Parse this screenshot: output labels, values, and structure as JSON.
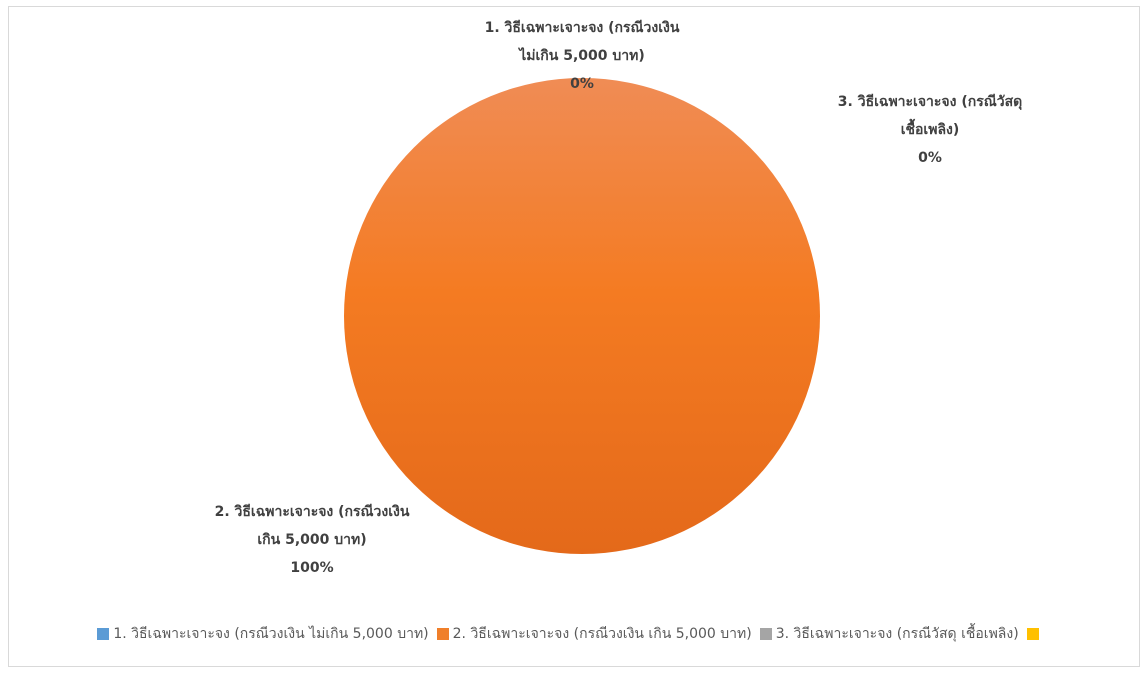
{
  "chart_data": {
    "type": "pie",
    "title": "",
    "slices": [
      {
        "name": "1. วิธีเฉพาะเจาะจง (กรณีวงเงิน ไม่เกิน 5,000 บาท)",
        "label_lines": [
          "1. วิธีเฉพาะเจาะจง (กรณีวงเงิน",
          "ไม่เกิน 5,000 บาท)"
        ],
        "value": 0,
        "percent_label": "0%",
        "color": "#5b9bd5"
      },
      {
        "name": "2. วิธีเฉพาะเจาะจง (กรณีวงเงิน เกิน 5,000 บาท)",
        "label_lines": [
          "2. วิธีเฉพาะเจาะจง (กรณีวงเงิน",
          "เกิน 5,000 บาท)"
        ],
        "value": 100,
        "percent_label": "100%",
        "color": "#f07f2a"
      },
      {
        "name": "3. วิธีเฉพาะเจาะจง (กรณีวัสดุ เชื้อเพลิง)",
        "label_lines": [
          "3. วิธีเฉพาะเจาะจง (กรณีวัสดุ",
          "เชื้อเพลิง)"
        ],
        "value": 0,
        "percent_label": "0%",
        "color": "#a5a5a5"
      },
      {
        "name": "",
        "label_lines": [],
        "value": 0,
        "percent_label": "",
        "color": "#ffc000"
      }
    ],
    "legend_position": "bottom"
  }
}
